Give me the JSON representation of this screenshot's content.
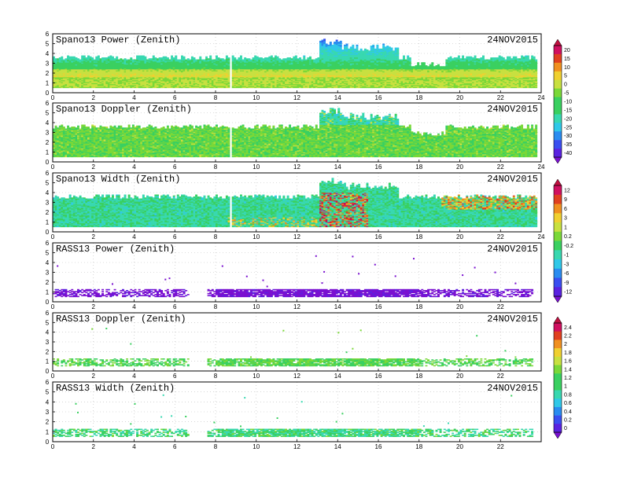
{
  "chart_data": [
    {
      "type": "heatmap",
      "title": "Spano13 Power (Zenith)",
      "date": "24NOV2015",
      "xlim": [
        0,
        24
      ],
      "ylim": [
        0,
        6
      ],
      "xticks": [
        "0",
        "2",
        "4",
        "6",
        "8",
        "10",
        "12",
        "14",
        "16",
        "18",
        "20",
        "22",
        "24"
      ],
      "yticks": [
        "0",
        "1",
        "2",
        "3",
        "4",
        "5",
        "6"
      ],
      "colorbar": {
        "group": "cb1",
        "ticks": [
          "20",
          "15",
          "10",
          "5",
          "0",
          "-5",
          "-10",
          "-15",
          "-20",
          "-25",
          "-30",
          "-35",
          "-40"
        ]
      },
      "style": "dense",
      "grid": true
    },
    {
      "type": "heatmap",
      "title": "Spano13 Doppler (Zenith)",
      "date": "24NOV2015",
      "xlim": [
        0,
        24
      ],
      "ylim": [
        0,
        6
      ],
      "xticks": [
        "0",
        "2",
        "4",
        "6",
        "8",
        "10",
        "12",
        "14",
        "16",
        "18",
        "20",
        "22",
        "24"
      ],
      "yticks": [
        "0",
        "1",
        "2",
        "3",
        "4",
        "5",
        "6"
      ],
      "colorbar": {
        "group": "cb1"
      },
      "style": "dense",
      "grid": true
    },
    {
      "type": "heatmap",
      "title": "Spano13 Width (Zenith)",
      "date": "24NOV2015",
      "xlim": [
        0,
        24
      ],
      "ylim": [
        0,
        6
      ],
      "xticks": [
        "0",
        "2",
        "4",
        "6",
        "8",
        "10",
        "12",
        "14",
        "16",
        "18",
        "20",
        "22",
        "24"
      ],
      "yticks": [
        "0",
        "1",
        "2",
        "3",
        "4",
        "5",
        "6"
      ],
      "colorbar": {
        "group": "cb2",
        "ticks": [
          "12",
          "9",
          "6",
          "3",
          "1",
          "0.2",
          "-0.2",
          "-1",
          "-3",
          "-6",
          "-9",
          "-12"
        ]
      },
      "style": "dense",
      "grid": true
    },
    {
      "type": "heatmap",
      "title": "RASS13 Power (Zenith)",
      "date": "24NOV2015",
      "xlim": [
        0,
        24
      ],
      "ylim": [
        0,
        6
      ],
      "xticks": [
        "0",
        "2",
        "4",
        "6",
        "8",
        "10",
        "12",
        "14",
        "16",
        "18",
        "20",
        "22"
      ],
      "yticks": [
        "0",
        "1",
        "2",
        "3",
        "4",
        "5",
        "6"
      ],
      "colorbar": {
        "group": "cb2"
      },
      "style": "sparse",
      "grid": true
    },
    {
      "type": "heatmap",
      "title": "RASS13 Doppler (Zenith)",
      "date": "24NOV2015",
      "xlim": [
        0,
        24
      ],
      "ylim": [
        0,
        6
      ],
      "xticks": [
        "0",
        "2",
        "4",
        "6",
        "8",
        "10",
        "12",
        "14",
        "16",
        "18",
        "20",
        "22"
      ],
      "yticks": [
        "0",
        "1",
        "2",
        "3",
        "4",
        "5",
        "6"
      ],
      "colorbar": {
        "group": "cb3",
        "ticks": [
          "2.4",
          "2.2",
          "2",
          "1.8",
          "1.6",
          "1.4",
          "1.2",
          "1",
          "0.8",
          "0.6",
          "0.4",
          "0.2",
          "0"
        ]
      },
      "style": "sparse",
      "grid": true
    },
    {
      "type": "heatmap",
      "title": "RASS13 Width (Zenith)",
      "date": "24NOV2015",
      "xlim": [
        0,
        24
      ],
      "ylim": [
        0,
        6
      ],
      "xticks": [
        "0",
        "2",
        "4",
        "6",
        "8",
        "10",
        "12",
        "14",
        "16",
        "18",
        "20",
        "22"
      ],
      "yticks": [
        "0",
        "1",
        "2",
        "3",
        "4",
        "5",
        "6"
      ],
      "colorbar": {
        "group": "cb3"
      },
      "style": "sparse",
      "grid": true
    }
  ],
  "colors": {
    "palette": [
      "#7a10d0",
      "#5a22e0",
      "#3a4ef0",
      "#2a8cf0",
      "#30c8e8",
      "#38d8b0",
      "#3ad060",
      "#7ad838",
      "#c8e040",
      "#f0d030",
      "#f09020",
      "#e04020",
      "#d01060",
      "#c01040"
    ]
  }
}
